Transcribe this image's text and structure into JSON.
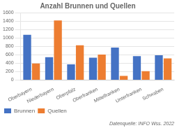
{
  "chart_data": {
    "type": "bar",
    "title": "Anzahl Brunnen und Quellen",
    "categories": [
      "Oberbayern",
      "Niederbayern",
      "Oberpfalz",
      "Oberfranken",
      "Mittelfranken",
      "Unterfranken",
      "Schwaben"
    ],
    "series": [
      {
        "name": "Brunnen",
        "color": "#4472C4",
        "values": [
          1074,
          542,
          375,
          529,
          772,
          567,
          588
        ]
      },
      {
        "name": "Quellen",
        "color": "#ED7D31",
        "values": [
          395,
          1412,
          826,
          606,
          100,
          212,
          514
        ]
      }
    ],
    "ylim": [
      0,
      1600
    ],
    "yticks": [
      0,
      200,
      400,
      600,
      800,
      1000,
      1200,
      1400,
      1600
    ],
    "grid": true,
    "legend": "lower left",
    "annotations": [
      "Datenquelle: INFO Wss. 2022"
    ]
  }
}
